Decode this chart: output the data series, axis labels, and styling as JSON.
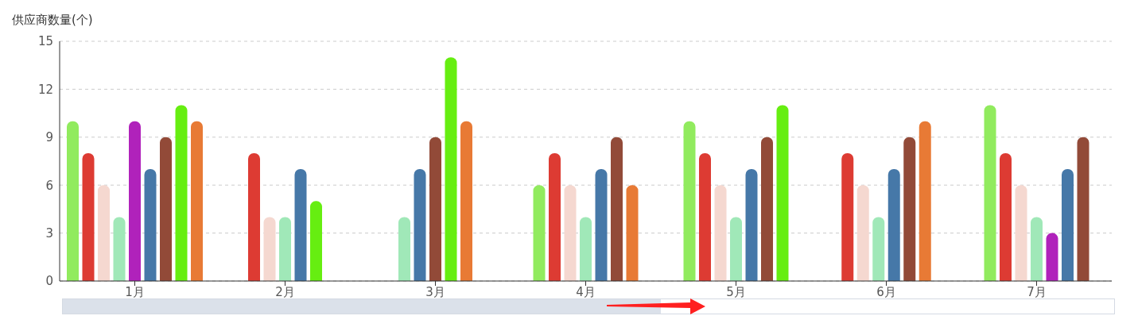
{
  "chart_data": {
    "type": "bar",
    "ylabel": "供应商数量(个)",
    "categories": [
      "1月",
      "2月",
      "3月",
      "4月",
      "5月",
      "6月",
      "7月"
    ],
    "series": [
      {
        "color": "#91eb5e",
        "values": [
          10,
          null,
          null,
          6,
          10,
          null,
          11
        ]
      },
      {
        "color": "#dd3b33",
        "values": [
          8,
          8,
          null,
          8,
          8,
          8,
          8
        ]
      },
      {
        "color": "#f5d8d0",
        "values": [
          6,
          4,
          null,
          6,
          6,
          6,
          6
        ]
      },
      {
        "color": "#a0e8b8",
        "values": [
          4,
          4,
          4,
          4,
          4,
          4,
          4
        ]
      },
      {
        "color": "#b022bb",
        "values": [
          10,
          null,
          null,
          null,
          null,
          null,
          3
        ]
      },
      {
        "color": "#4678a8",
        "values": [
          7,
          7,
          7,
          7,
          7,
          7,
          7
        ]
      },
      {
        "color": "#924a38",
        "values": [
          9,
          null,
          9,
          9,
          9,
          9,
          9
        ]
      },
      {
        "color": "#66ee11",
        "values": [
          11,
          5,
          14,
          null,
          11,
          null,
          null
        ]
      },
      {
        "color": "#e87a35",
        "values": [
          10,
          null,
          10,
          6,
          null,
          10,
          null
        ]
      }
    ],
    "ylim": [
      0,
      15
    ],
    "yticks": [
      0,
      3,
      6,
      9,
      12,
      15
    ],
    "grid": "y"
  }
}
